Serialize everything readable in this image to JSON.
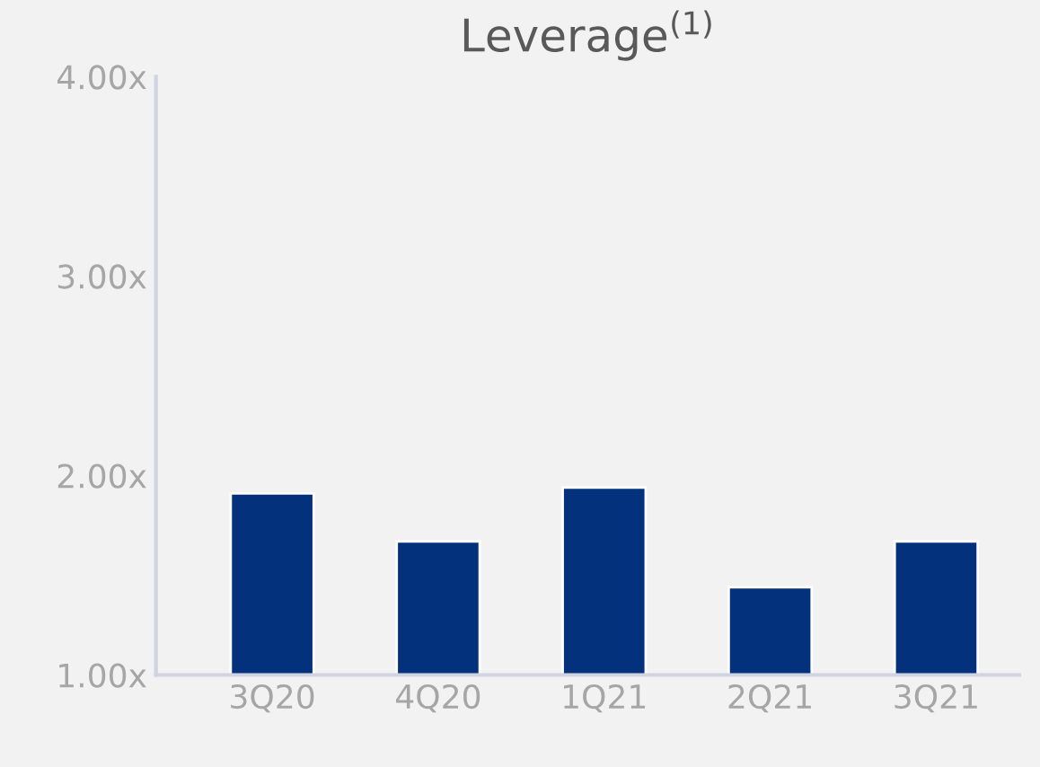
{
  "chart_data": {
    "type": "bar",
    "title": "Leverage$^{(1)}$",
    "categories": [
      "3Q20",
      "4Q20",
      "1Q21",
      "2Q21",
      "3Q21"
    ],
    "values": [
      1.91,
      1.67,
      1.94,
      1.44,
      1.67
    ],
    "color": "#03317b",
    "ylim": [
      1,
      4
    ],
    "yticks": [
      {
        "value": 1,
        "label": "1.00x"
      },
      {
        "value": 2,
        "label": "2.00x"
      },
      {
        "value": 3,
        "label": "3.00x"
      },
      {
        "value": 4,
        "label": "4.00x"
      }
    ],
    "grid": false,
    "legend": false
  }
}
